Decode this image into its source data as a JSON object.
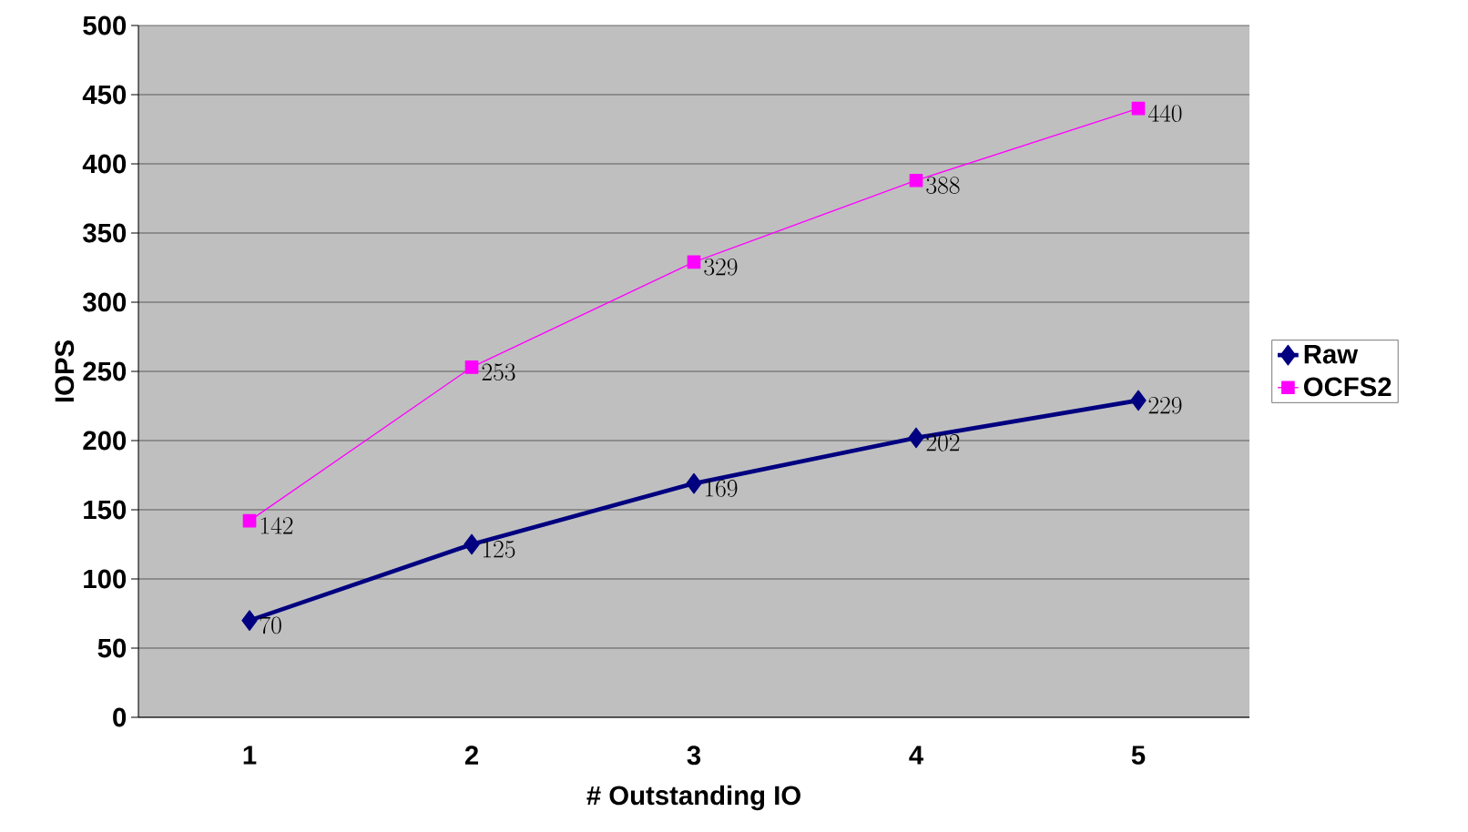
{
  "chart_data": {
    "type": "line",
    "xlabel": "# Outstanding IO",
    "ylabel": "IOPS",
    "categories": [
      "1",
      "2",
      "3",
      "4",
      "5"
    ],
    "series": [
      {
        "name": "Raw",
        "color": "#000080",
        "values": [
          70,
          125,
          169,
          202,
          229
        ],
        "marker": "diamond"
      },
      {
        "name": "OCFS2",
        "color": "#ff00ff",
        "values": [
          142,
          253,
          329,
          388,
          440
        ],
        "marker": "square"
      }
    ],
    "ylim": [
      0,
      500
    ],
    "yticks": [
      0,
      50,
      100,
      150,
      200,
      250,
      300,
      350,
      400,
      450,
      500
    ],
    "grid": "y",
    "legend": "right",
    "data_labels": true
  }
}
